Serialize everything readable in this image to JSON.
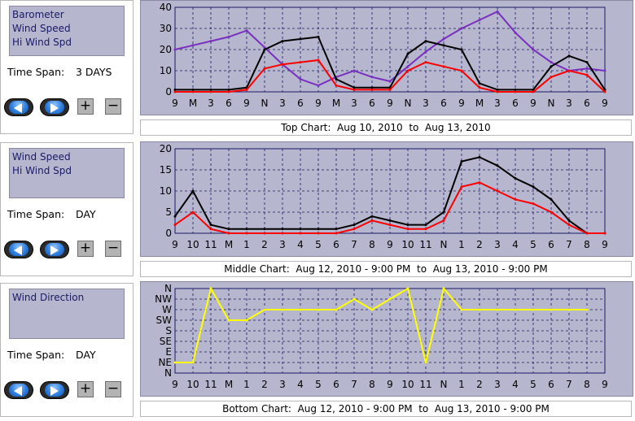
{
  "panels": [
    {
      "series": [
        "Barometer",
        "Wind Speed",
        "Hi Wind Spd"
      ],
      "time_span_label": "Time Span:",
      "time_span_value": "3 DAYS"
    },
    {
      "series": [
        "Wind Speed",
        "Hi Wind Spd"
      ],
      "time_span_label": "Time Span:",
      "time_span_value": "DAY"
    },
    {
      "series": [
        "Wind Direction"
      ],
      "time_span_label": "Time Span:",
      "time_span_value": "DAY"
    }
  ],
  "controls": {
    "back_icon": "left-arrow-icon",
    "forward_icon": "right-arrow-icon",
    "zoom_in_label": "+",
    "zoom_out_label": "−"
  },
  "colors": {
    "plot_bg": "#b6b6cf",
    "barometer": "#7a2fbf",
    "wind_speed": "#000000",
    "hi_wind_spd": "#ff0000",
    "wind_direction": "#ffff00",
    "grid": "#1a1a66"
  },
  "captions": {
    "top": "Top Chart:  Aug 10, 2010  to  Aug 13, 2010",
    "middle": "Middle Chart:  Aug 12, 2010 - 9:00 PM  to  Aug 13, 2010 - 9:00 PM",
    "bottom": "Bottom Chart:  Aug 12, 2010 - 9:00 PM  to  Aug 13, 2010 - 9:00 PM"
  },
  "chart_data": [
    {
      "type": "line",
      "title": "",
      "x": [
        "9",
        "M",
        "3",
        "6",
        "9",
        "N",
        "3",
        "6",
        "9",
        "M",
        "3",
        "6",
        "9",
        "N",
        "3",
        "6",
        "9",
        "M",
        "3",
        "6",
        "9",
        "N",
        "3",
        "6",
        "9"
      ],
      "ylim": [
        0,
        40
      ],
      "yticks": [
        "0",
        "10",
        "20",
        "30",
        "40"
      ],
      "series": [
        {
          "name": "Barometer",
          "color": "#7a2fbf",
          "values": [
            20,
            22,
            24,
            26,
            29,
            21,
            13,
            6,
            3,
            7,
            10,
            7,
            5,
            12,
            19,
            25,
            30,
            34,
            38,
            28,
            20,
            14,
            10,
            11,
            10
          ]
        },
        {
          "name": "Wind Speed",
          "color": "#000000",
          "values": [
            1,
            1,
            1,
            1,
            2,
            20,
            24,
            25,
            26,
            6,
            2,
            2,
            2,
            18,
            24,
            22,
            20,
            4,
            1,
            1,
            1,
            12,
            17,
            14,
            1
          ]
        },
        {
          "name": "Hi Wind Spd",
          "color": "#ff0000",
          "values": [
            0,
            0,
            0,
            0,
            1,
            11,
            13,
            14,
            15,
            3,
            1,
            1,
            1,
            10,
            14,
            12,
            10,
            2,
            0,
            0,
            0,
            7,
            10,
            8,
            0
          ]
        }
      ]
    },
    {
      "type": "line",
      "title": "",
      "x": [
        "9",
        "10",
        "11",
        "M",
        "1",
        "2",
        "3",
        "4",
        "5",
        "6",
        "7",
        "8",
        "9",
        "10",
        "11",
        "N",
        "1",
        "2",
        "3",
        "4",
        "5",
        "6",
        "7",
        "8",
        "9"
      ],
      "ylim": [
        0,
        20
      ],
      "yticks": [
        "0",
        "5",
        "10",
        "15",
        "20"
      ],
      "series": [
        {
          "name": "Wind Speed",
          "color": "#000000",
          "values": [
            4,
            10,
            2,
            1,
            1,
            1,
            1,
            1,
            1,
            1,
            2,
            4,
            3,
            2,
            2,
            5,
            17,
            18,
            16,
            13,
            11,
            8,
            3,
            0,
            0
          ]
        },
        {
          "name": "Hi Wind Spd",
          "color": "#ff0000",
          "values": [
            2,
            5,
            1,
            0,
            0,
            0,
            0,
            0,
            0,
            0,
            1,
            3,
            2,
            1,
            1,
            3,
            11,
            12,
            10,
            8,
            7,
            5,
            2,
            0,
            0
          ]
        }
      ]
    },
    {
      "type": "line",
      "title": "",
      "x": [
        "9",
        "10",
        "11",
        "M",
        "1",
        "2",
        "3",
        "4",
        "5",
        "6",
        "7",
        "8",
        "9",
        "10",
        "11",
        "N",
        "1",
        "2",
        "3",
        "4",
        "5",
        "6",
        "7",
        "8",
        "9"
      ],
      "yticks": [
        "N",
        "NE",
        "E",
        "SE",
        "S",
        "SW",
        "W",
        "NW",
        "N"
      ],
      "series": [
        {
          "name": "Wind Direction",
          "color": "#ffff00",
          "values": [
            1,
            1,
            8,
            5,
            5,
            6,
            6,
            6,
            6,
            6,
            7,
            6,
            7,
            8,
            1,
            8,
            6,
            6,
            6,
            6,
            6,
            6,
            6,
            6,
            null
          ]
        }
      ]
    }
  ]
}
